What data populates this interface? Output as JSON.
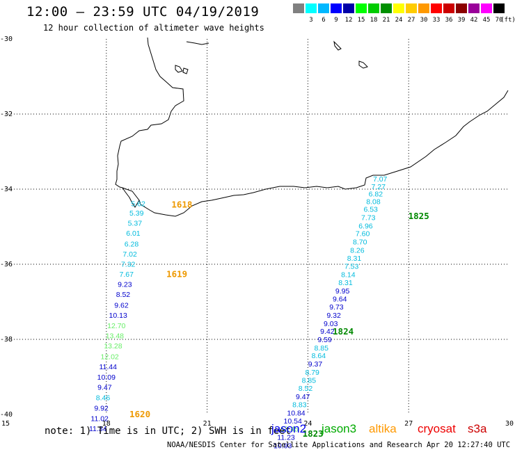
{
  "title": "12:00 – 23:59 UTC 04/19/2019",
  "subtitle": "12 hour collection of altimeter wave heights",
  "legend": {
    "unit": "(ft)",
    "bins": [
      {
        "color": "#808080",
        "label": ""
      },
      {
        "color": "#00ffff",
        "label": "3"
      },
      {
        "color": "#00b8ff",
        "label": "6"
      },
      {
        "color": "#0000ff",
        "label": "9"
      },
      {
        "color": "#0000a8",
        "label": "12"
      },
      {
        "color": "#00ff00",
        "label": "15"
      },
      {
        "color": "#00cc00",
        "label": "18"
      },
      {
        "color": "#009000",
        "label": "21"
      },
      {
        "color": "#ffff00",
        "label": "24"
      },
      {
        "color": "#ffcc00",
        "label": "27"
      },
      {
        "color": "#ff9900",
        "label": "30"
      },
      {
        "color": "#ff0000",
        "label": "33"
      },
      {
        "color": "#cc0000",
        "label": "36"
      },
      {
        "color": "#8b0000",
        "label": "39"
      },
      {
        "color": "#990099",
        "label": "42"
      },
      {
        "color": "#ff00ff",
        "label": "45"
      },
      {
        "color": "#000000",
        "label": "70"
      }
    ]
  },
  "axes": {
    "lon_ticks": [
      "15",
      "18",
      "21",
      "24",
      "27",
      "30"
    ],
    "lat_ticks": [
      "-30",
      "-32",
      "-34",
      "-36",
      "-38",
      "-40"
    ]
  },
  "tracks": [
    {
      "color": "#00bbdd",
      "points": [
        {
          "lon": 18.95,
          "lat": -34.38,
          "value": "5.62"
        },
        {
          "lon": 18.9,
          "lat": -34.63,
          "value": "5.39"
        },
        {
          "lon": 18.85,
          "lat": -34.9,
          "value": "5.37"
        },
        {
          "lon": 18.8,
          "lat": -35.17,
          "value": "6.01"
        },
        {
          "lon": 18.75,
          "lat": -35.45,
          "value": "6.28"
        },
        {
          "lon": 18.7,
          "lat": -35.72,
          "value": "7.02"
        },
        {
          "lon": 18.65,
          "lat": -35.99,
          "value": "7.32"
        },
        {
          "lon": 18.6,
          "lat": -36.26,
          "value": "7.67"
        }
      ]
    },
    {
      "color": "#0000cc",
      "points": [
        {
          "lon": 18.55,
          "lat": -36.53,
          "value": "9.23"
        },
        {
          "lon": 18.5,
          "lat": -36.8,
          "value": "8.52"
        },
        {
          "lon": 18.45,
          "lat": -37.08,
          "value": "9.62"
        },
        {
          "lon": 18.35,
          "lat": -37.35,
          "value": "10.13"
        }
      ]
    },
    {
      "color": "#66ee66",
      "points": [
        {
          "lon": 18.3,
          "lat": -37.63,
          "value": "12.70"
        },
        {
          "lon": 18.25,
          "lat": -37.9,
          "value": "13.48"
        },
        {
          "lon": 18.2,
          "lat": -38.17,
          "value": "13.28"
        },
        {
          "lon": 18.1,
          "lat": -38.45,
          "value": "12.02"
        }
      ]
    },
    {
      "color": "#0000cc",
      "points": [
        {
          "lon": 18.05,
          "lat": -38.72,
          "value": "11.44"
        },
        {
          "lon": 18.0,
          "lat": -39.0,
          "value": "10.09"
        },
        {
          "lon": 17.95,
          "lat": -39.27,
          "value": "9.47"
        }
      ]
    },
    {
      "color": "#00bbdd",
      "points": [
        {
          "lon": 17.9,
          "lat": -39.55,
          "value": "8.46"
        }
      ]
    },
    {
      "color": "#0000cc",
      "points": [
        {
          "lon": 17.85,
          "lat": -39.82,
          "value": "9.92"
        },
        {
          "lon": 17.8,
          "lat": -40.1,
          "value": "11.02"
        },
        {
          "lon": 17.75,
          "lat": -40.37,
          "value": "11.34"
        }
      ]
    },
    {
      "color": "#00bbdd",
      "points": [
        {
          "lon": 26.15,
          "lat": -33.72,
          "value": "7.07"
        },
        {
          "lon": 26.1,
          "lat": -33.93,
          "value": "7.27"
        },
        {
          "lon": 26.02,
          "lat": -34.12,
          "value": "6.82"
        },
        {
          "lon": 25.95,
          "lat": -34.32,
          "value": "8.08"
        },
        {
          "lon": 25.87,
          "lat": -34.53,
          "value": "6.53"
        },
        {
          "lon": 25.8,
          "lat": -34.75,
          "value": "7.73"
        },
        {
          "lon": 25.72,
          "lat": -34.97,
          "value": "6.96"
        },
        {
          "lon": 25.63,
          "lat": -35.18,
          "value": "7.60"
        },
        {
          "lon": 25.55,
          "lat": -35.4,
          "value": "8.70"
        },
        {
          "lon": 25.47,
          "lat": -35.62,
          "value": "8.26"
        },
        {
          "lon": 25.38,
          "lat": -35.83,
          "value": "8.31"
        },
        {
          "lon": 25.3,
          "lat": -36.05,
          "value": "7.53"
        },
        {
          "lon": 25.2,
          "lat": -36.27,
          "value": "8.14"
        },
        {
          "lon": 25.12,
          "lat": -36.48,
          "value": "8.31"
        }
      ]
    },
    {
      "color": "#0000cc",
      "points": [
        {
          "lon": 25.03,
          "lat": -36.7,
          "value": "9.95"
        },
        {
          "lon": 24.95,
          "lat": -36.92,
          "value": "9.64"
        },
        {
          "lon": 24.85,
          "lat": -37.13,
          "value": "9.73"
        },
        {
          "lon": 24.77,
          "lat": -37.35,
          "value": "9.32"
        },
        {
          "lon": 24.68,
          "lat": -37.57,
          "value": "9.03"
        },
        {
          "lon": 24.58,
          "lat": -37.78,
          "value": "9.42"
        },
        {
          "lon": 24.5,
          "lat": -38.0,
          "value": "9.59"
        }
      ]
    },
    {
      "color": "#00bbdd",
      "points": [
        {
          "lon": 24.4,
          "lat": -38.22,
          "value": "8.85"
        },
        {
          "lon": 24.32,
          "lat": -38.43,
          "value": "8.64"
        }
      ]
    },
    {
      "color": "#0000cc",
      "points": [
        {
          "lon": 24.22,
          "lat": -38.65,
          "value": "9.37"
        }
      ]
    },
    {
      "color": "#00bbdd",
      "points": [
        {
          "lon": 24.13,
          "lat": -38.87,
          "value": "8.79"
        },
        {
          "lon": 24.03,
          "lat": -39.08,
          "value": "8.85"
        },
        {
          "lon": 23.93,
          "lat": -39.3,
          "value": "8.52"
        }
      ]
    },
    {
      "color": "#0000cc",
      "points": [
        {
          "lon": 23.85,
          "lat": -39.52,
          "value": "9.47"
        }
      ]
    },
    {
      "color": "#00bbdd",
      "points": [
        {
          "lon": 23.75,
          "lat": -39.73,
          "value": "8.83"
        }
      ]
    },
    {
      "color": "#0000cc",
      "points": [
        {
          "lon": 23.65,
          "lat": -39.95,
          "value": "10.84"
        },
        {
          "lon": 23.55,
          "lat": -40.17,
          "value": "10.54"
        }
      ]
    },
    {
      "color": "#66ee66",
      "points": [
        {
          "lon": 23.45,
          "lat": -40.38,
          "value": "12.45"
        }
      ]
    },
    {
      "color": "#0000cc",
      "points": [
        {
          "lon": 23.35,
          "lat": -40.6,
          "value": "11.23"
        },
        {
          "lon": 23.25,
          "lat": -40.82,
          "value": "10.93"
        }
      ]
    }
  ],
  "time_labels": [
    {
      "text": "1618",
      "color": "#ee9900",
      "lon": 20.25,
      "lat": -34.4
    },
    {
      "text": "1619",
      "color": "#ee9900",
      "lon": 20.1,
      "lat": -36.25
    },
    {
      "text": "1620",
      "color": "#ee9900",
      "lon": 19.0,
      "lat": -39.98
    },
    {
      "text": "1825",
      "color": "#008800",
      "lon": 27.3,
      "lat": -34.7
    },
    {
      "text": "1824",
      "color": "#008800",
      "lon": 25.05,
      "lat": -37.78
    },
    {
      "text": "1823",
      "color": "#008800",
      "lon": 24.15,
      "lat": -40.5
    }
  ],
  "note": "note: 1) Time is in UTC; 2) SWH is in feet",
  "satellites": [
    {
      "name": "jason2",
      "color": "#0000ee"
    },
    {
      "name": "jason3",
      "color": "#00aa00"
    },
    {
      "name": "altika",
      "color": "#ff9900"
    },
    {
      "name": "cryosat",
      "color": "#ee0000"
    },
    {
      "name": "s3a",
      "color": "#cc0000"
    }
  ],
  "credit": "NOAA/NESDIS Center for Satellite Applications and Research   Apr 20 12:27:40 UTC 2019"
}
